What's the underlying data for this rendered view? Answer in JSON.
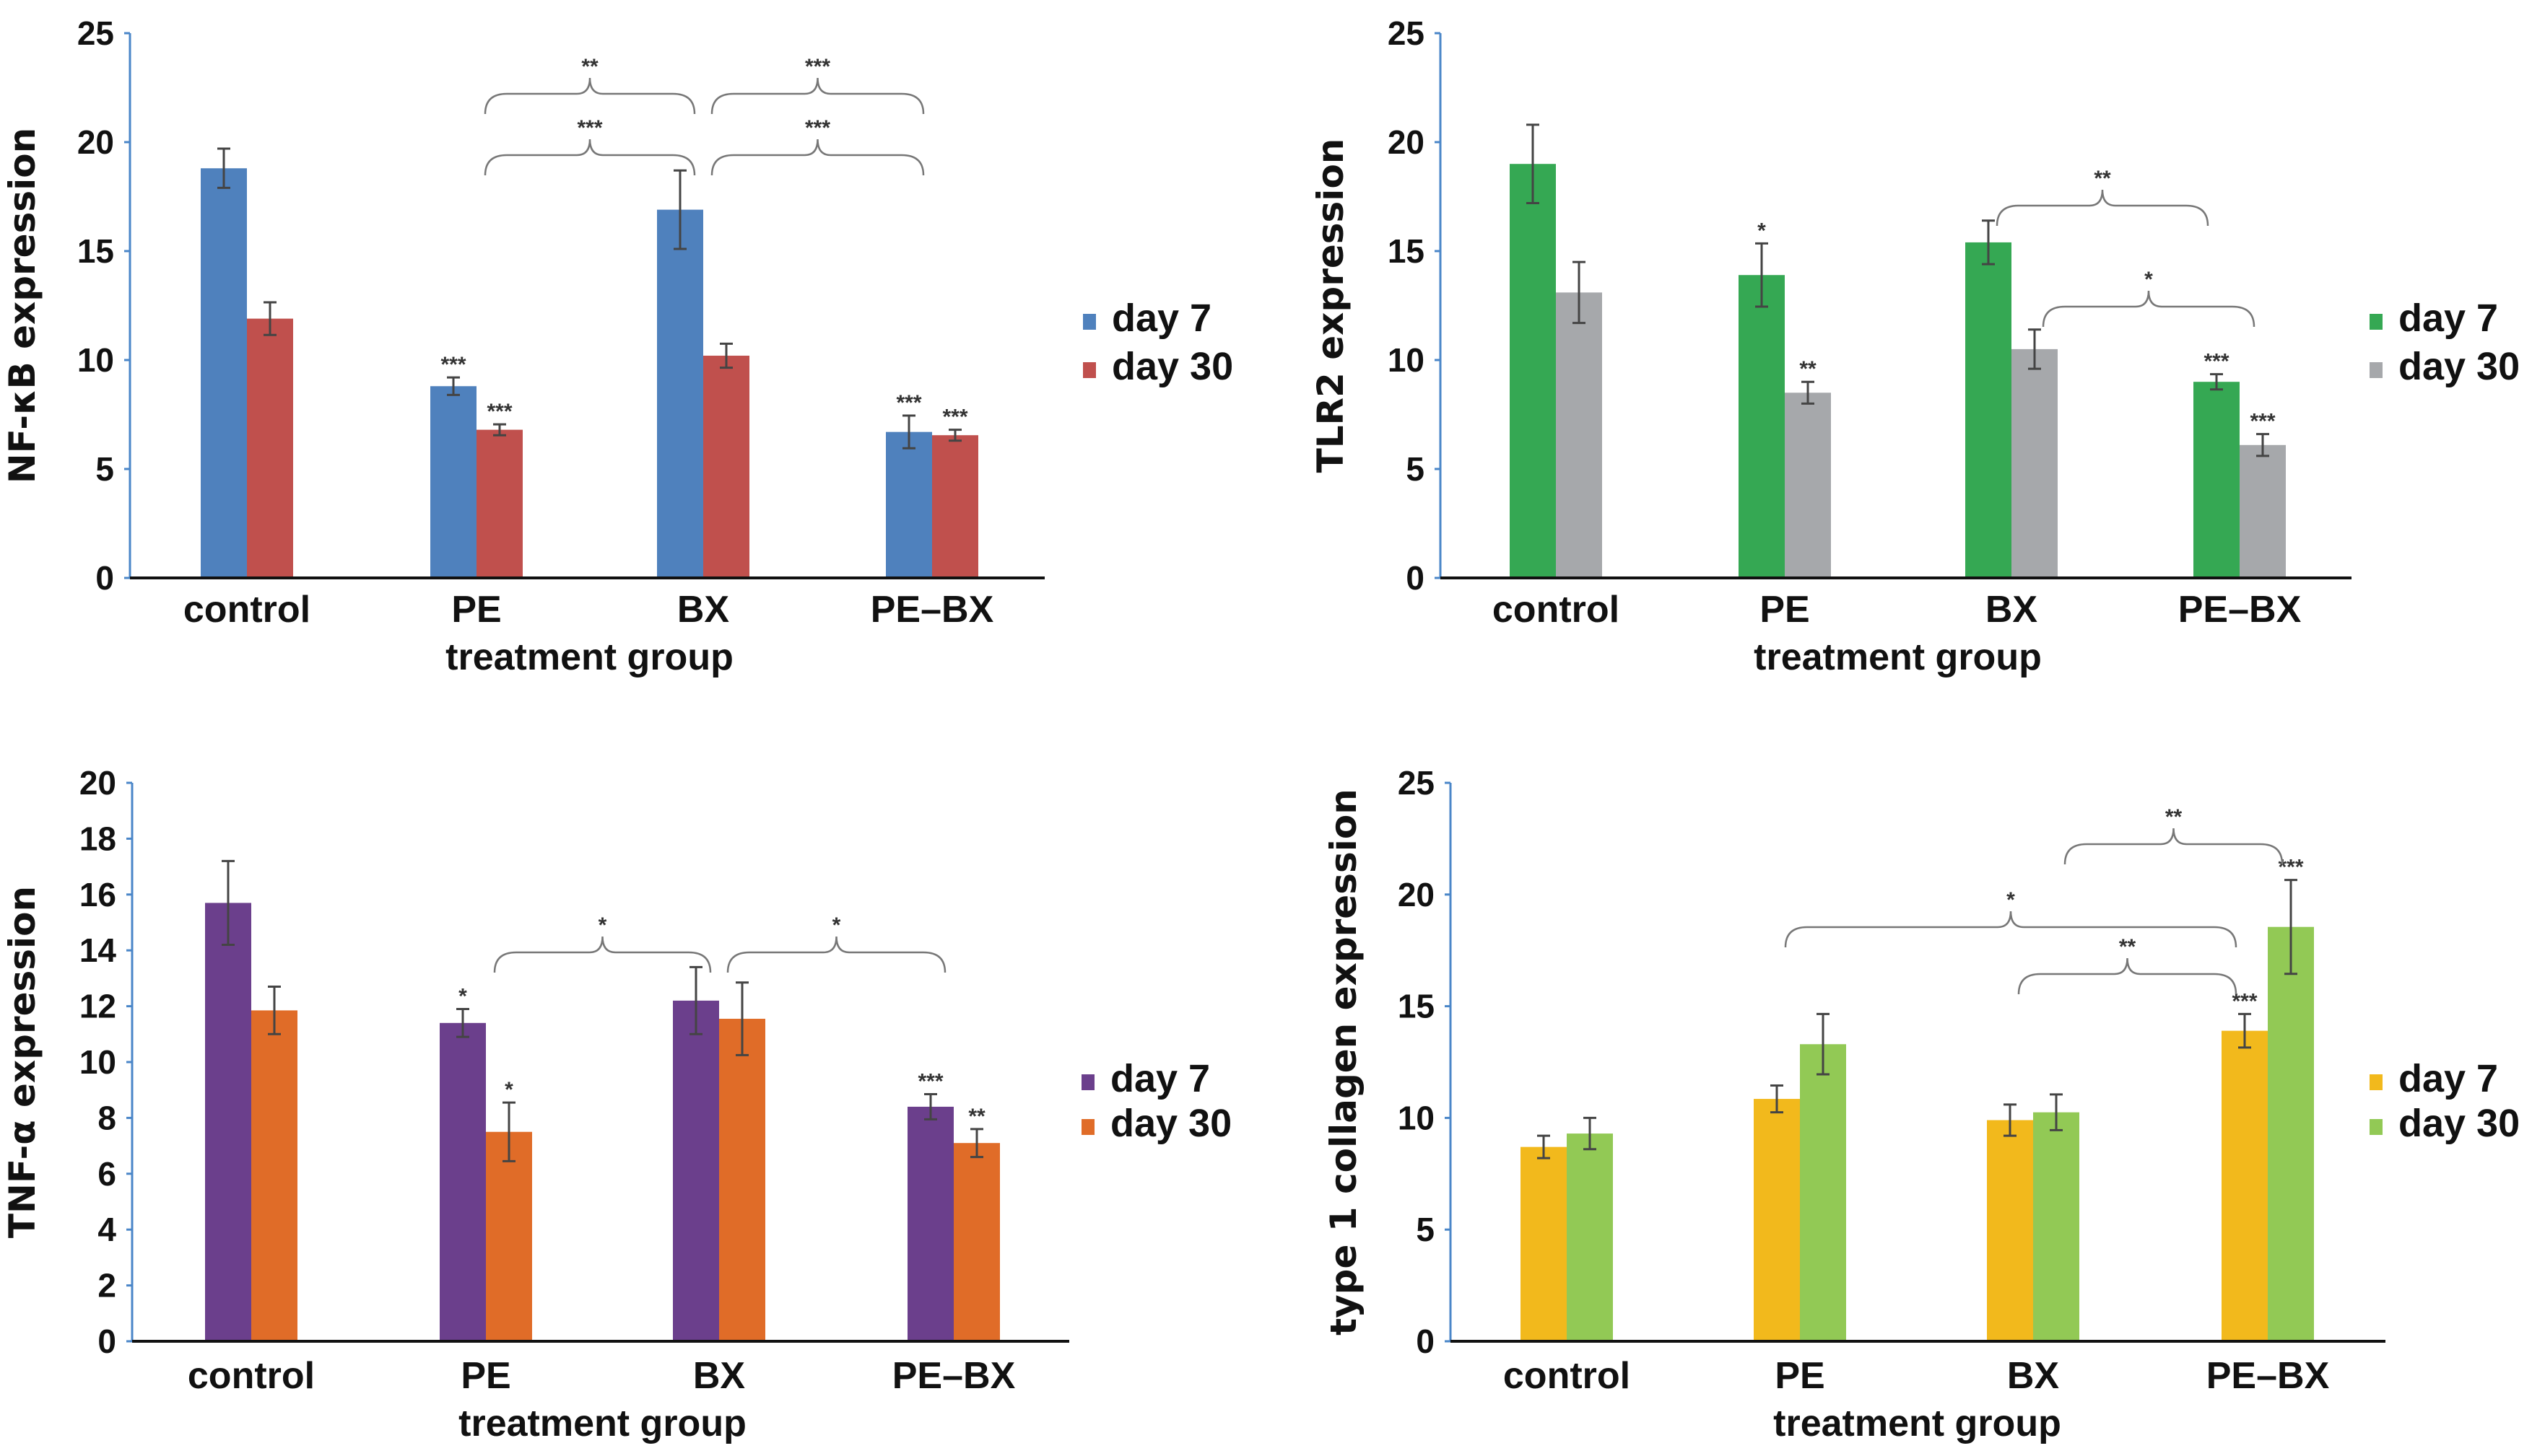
{
  "chart_data": [
    {
      "type": "bar",
      "title": "",
      "xlabel": "treatment group",
      "ylabel": "NF-κB expression",
      "ylim": [
        0,
        25
      ],
      "yticks": [
        0,
        5,
        10,
        15,
        20,
        25
      ],
      "categories": [
        "control",
        "PE",
        "BX",
        "PE–BX"
      ],
      "legend_position": "right",
      "series": [
        {
          "name": "day 7",
          "color": "#4f81bd",
          "values": [
            18.8,
            8.8,
            16.9,
            6.7
          ],
          "errors": [
            0.9,
            0.4,
            1.8,
            0.75
          ],
          "significance": [
            "",
            "***",
            "",
            "***"
          ]
        },
        {
          "name": "day 30",
          "color": "#c0504d",
          "values": [
            11.9,
            6.8,
            10.2,
            6.55
          ],
          "errors": [
            0.75,
            0.25,
            0.55,
            0.25
          ],
          "significance": [
            "",
            "***",
            "",
            "***"
          ]
        }
      ],
      "brackets": [
        {
          "from": "PE",
          "to": "BX",
          "label": "***",
          "level": 1
        },
        {
          "from": "BX",
          "to": "PE–BX",
          "label": "***",
          "level": 1
        },
        {
          "from": "PE",
          "to": "BX",
          "label": "**",
          "level": 2
        },
        {
          "from": "BX",
          "to": "PE–BX",
          "label": "***",
          "level": 2
        }
      ]
    },
    {
      "type": "bar",
      "title": "",
      "xlabel": "treatment group",
      "ylabel": "TLR2 expression",
      "ylim": [
        0,
        25
      ],
      "yticks": [
        0,
        5,
        10,
        15,
        20,
        25
      ],
      "categories": [
        "control",
        "PE",
        "BX",
        "PE–BX"
      ],
      "legend_position": "right",
      "series": [
        {
          "name": "day 7",
          "color": "#35a853",
          "values": [
            19.0,
            13.9,
            15.4,
            9.0
          ],
          "errors": [
            1.8,
            1.45,
            1.0,
            0.35
          ],
          "significance": [
            "",
            "*",
            "",
            "***"
          ]
        },
        {
          "name": "day 30",
          "color": "#a6a8ab",
          "values": [
            13.1,
            8.5,
            10.5,
            6.1
          ],
          "errors": [
            1.4,
            0.5,
            0.9,
            0.5
          ],
          "significance": [
            "",
            "**",
            "",
            "***"
          ]
        }
      ],
      "brackets": [
        {
          "from": "BX",
          "to": "PE–BX",
          "label": "**",
          "level": 2,
          "series": "day 7"
        },
        {
          "from": "BX",
          "to": "PE–BX",
          "label": "*",
          "level": 1,
          "series": "day 30"
        }
      ]
    },
    {
      "type": "bar",
      "title": "",
      "xlabel": "treatment group",
      "ylabel": "TNF-α expression",
      "ylim": [
        0,
        20
      ],
      "yticks": [
        0,
        2,
        4,
        6,
        8,
        10,
        12,
        14,
        16,
        18,
        20
      ],
      "categories": [
        "control",
        "PE",
        "BX",
        "PE–BX"
      ],
      "legend_position": "right",
      "series": [
        {
          "name": "day 7",
          "color": "#6b3f8c",
          "values": [
            15.7,
            11.4,
            12.2,
            8.4
          ],
          "errors": [
            1.5,
            0.5,
            1.2,
            0.45
          ],
          "significance": [
            "",
            "*",
            "",
            "***"
          ]
        },
        {
          "name": "day 30",
          "color": "#e06c28",
          "values": [
            11.85,
            7.5,
            11.55,
            7.1
          ],
          "errors": [
            0.85,
            1.05,
            1.3,
            0.5
          ],
          "significance": [
            "",
            "*",
            "",
            "**"
          ]
        }
      ],
      "brackets": [
        {
          "from": "PE",
          "to": "BX",
          "label": "*",
          "level": 1
        },
        {
          "from": "BX",
          "to": "PE–BX",
          "label": "*",
          "level": 1
        }
      ]
    },
    {
      "type": "bar",
      "title": "",
      "xlabel": "treatment group",
      "ylabel": "type 1 collagen expression",
      "ylim": [
        0,
        25
      ],
      "yticks": [
        0,
        5,
        10,
        15,
        20,
        25
      ],
      "categories": [
        "control",
        "PE",
        "BX",
        "PE–BX"
      ],
      "legend_position": "right",
      "series": [
        {
          "name": "day 7",
          "color": "#f2b91c",
          "values": [
            8.7,
            10.85,
            9.9,
            13.9
          ],
          "errors": [
            0.5,
            0.6,
            0.7,
            0.75
          ],
          "significance": [
            "",
            "",
            "",
            "***"
          ]
        },
        {
          "name": "day 30",
          "color": "#92c955",
          "values": [
            9.3,
            13.3,
            10.25,
            18.55
          ],
          "errors": [
            0.7,
            1.35,
            0.8,
            2.1
          ],
          "significance": [
            "",
            "",
            "",
            "***"
          ]
        }
      ],
      "brackets": [
        {
          "from": "BX",
          "to": "PE–BX",
          "label": "**",
          "level": 1,
          "series": "day 7"
        },
        {
          "from": "PE",
          "to": "PE–BX",
          "label": "*",
          "level": 2,
          "series": "day 7"
        },
        {
          "from": "BX",
          "to": "PE–BX",
          "label": "**",
          "level": 3,
          "series": "day 30"
        }
      ]
    }
  ]
}
